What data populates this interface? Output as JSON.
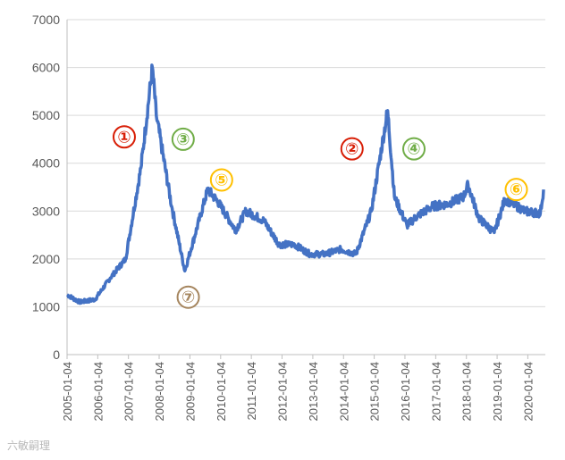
{
  "watermark": "六敏嗣理",
  "chart_data": {
    "type": "line",
    "title": "",
    "xlabel": "",
    "ylabel": "",
    "ylim": [
      0,
      7000
    ],
    "yticks": [
      0,
      1000,
      2000,
      3000,
      4000,
      5000,
      6000,
      7000
    ],
    "xticks": [
      "2005-01-04",
      "2006-01-04",
      "2007-01-04",
      "2008-01-04",
      "2009-01-04",
      "2010-01-04",
      "2011-01-04",
      "2012-01-04",
      "2013-01-04",
      "2014-01-04",
      "2015-01-04",
      "2016-01-04",
      "2017-01-04",
      "2018-01-04",
      "2019-01-04",
      "2020-01-04"
    ],
    "grid": "horizontal",
    "line_color": "#4472C4",
    "x": [
      "2005-01-04",
      "2005-06-01",
      "2005-12-01",
      "2006-06-01",
      "2006-12-01",
      "2007-06-01",
      "2007-10-16",
      "2007-12-01",
      "2008-06-01",
      "2008-11-04",
      "2009-08-04",
      "2009-12-01",
      "2010-07-01",
      "2010-11-01",
      "2011-06-01",
      "2011-12-01",
      "2012-06-01",
      "2012-12-01",
      "2013-06-01",
      "2013-12-01",
      "2014-06-01",
      "2014-12-01",
      "2015-06-12",
      "2015-09-01",
      "2016-01-28",
      "2016-06-01",
      "2016-12-01",
      "2017-06-01",
      "2017-12-01",
      "2018-01-24",
      "2018-06-01",
      "2018-12-01",
      "2019-04-08",
      "2019-12-01",
      "2020-06-01",
      "2020-07-09"
    ],
    "values": [
      1250,
      1100,
      1150,
      1600,
      2000,
      3900,
      6000,
      5000,
      3100,
      1750,
      3450,
      3200,
      2600,
      3000,
      2800,
      2300,
      2300,
      2100,
      2100,
      2200,
      2100,
      3000,
      5100,
      3300,
      2700,
      2900,
      3100,
      3150,
      3300,
      3550,
      2850,
      2550,
      3250,
      3000,
      2950,
      3450
    ],
    "annotations": [
      {
        "label": "①",
        "x": "2006-11-15",
        "y": 4550,
        "color": "#d81e06"
      },
      {
        "label": "②",
        "x": "2014-04-15",
        "y": 4300,
        "color": "#d81e06"
      },
      {
        "label": "③",
        "x": "2008-10-15",
        "y": 4500,
        "color": "#70ad47"
      },
      {
        "label": "④",
        "x": "2016-04-20",
        "y": 4300,
        "color": "#70ad47"
      },
      {
        "label": "⑤",
        "x": "2010-01-15",
        "y": 3650,
        "color": "#ffc000"
      },
      {
        "label": "⑥",
        "x": "2019-08-20",
        "y": 3450,
        "color": "#ffc000"
      },
      {
        "label": "⑦",
        "x": "2008-12-15",
        "y": 1200,
        "color": "#a5855e"
      }
    ]
  }
}
